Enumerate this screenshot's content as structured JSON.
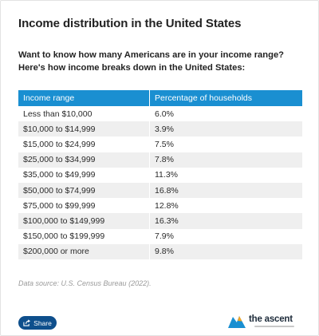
{
  "title": "Income distribution in the United States",
  "intro": "Want to know how many Americans are in your income range? Here's how income breaks down in the United States:",
  "table": {
    "headers": [
      "Income range",
      "Percentage of households"
    ],
    "rows": [
      [
        "Less than $10,000",
        "6.0%"
      ],
      [
        "$10,000 to $14,999",
        "3.9%"
      ],
      [
        "$15,000 to $24,999",
        "7.5%"
      ],
      [
        "$25,000 to $34,999",
        "7.8%"
      ],
      [
        "$35,000 to $49,999",
        "11.3%"
      ],
      [
        "$50,000 to $74,999",
        "16.8%"
      ],
      [
        "$75,000 to $99,999",
        "12.8%"
      ],
      [
        "$100,000 to $149,999",
        "16.3%"
      ],
      [
        "$150,000 to $199,999",
        "7.9%"
      ],
      [
        "$200,000 or more",
        "9.8%"
      ]
    ]
  },
  "source": "Data source: U.S. Census Bureau (2022).",
  "share": {
    "label": "Share",
    "icon": "share-icon"
  },
  "brand": {
    "name": "the ascent",
    "icon": "ascent-logo-icon"
  },
  "colors": {
    "header_bg": "#1a8fd1",
    "share_bg": "#0e4f8c",
    "logo_blue": "#1a8fd1",
    "logo_orange": "#f5a623"
  }
}
